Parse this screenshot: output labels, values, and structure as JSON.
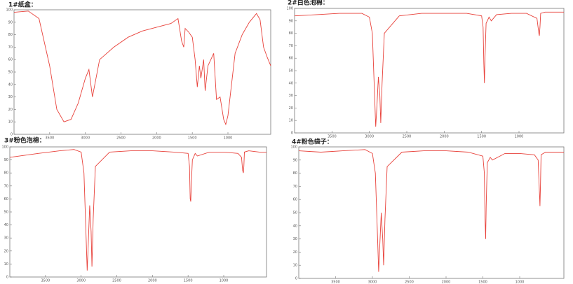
{
  "chart_data": [
    {
      "type": "line",
      "title": "1#纸盒：",
      "color": "#e8413a",
      "x": [
        4000,
        3800,
        3650,
        3500,
        3400,
        3300,
        3200,
        3100,
        3000,
        2950,
        2900,
        2850,
        2800,
        2600,
        2400,
        2200,
        2000,
        1800,
        1700,
        1650,
        1620,
        1600,
        1550,
        1500,
        1460,
        1430,
        1400,
        1380,
        1340,
        1320,
        1280,
        1200,
        1160,
        1110,
        1060,
        1030,
        1000,
        950,
        900,
        800,
        700,
        600,
        550,
        500,
        450,
        400
      ],
      "values": [
        98,
        99,
        93,
        55,
        20,
        10,
        12,
        25,
        45,
        52,
        30,
        45,
        60,
        70,
        78,
        83,
        86,
        89,
        93,
        75,
        70,
        85,
        82,
        78,
        60,
        38,
        55,
        45,
        60,
        35,
        55,
        65,
        28,
        30,
        12,
        8,
        15,
        40,
        65,
        80,
        90,
        97,
        92,
        70,
        62,
        55
      ],
      "xlim": [
        4000,
        400
      ],
      "ylim": [
        0,
        100
      ],
      "xticks": [
        3500,
        3000,
        2500,
        2000,
        1500,
        1000
      ],
      "yticks": [
        0,
        10,
        20,
        30,
        40,
        50,
        60,
        70,
        80,
        90,
        100
      ]
    },
    {
      "type": "line",
      "title": "2#白色泡棉：",
      "color": "#e8413a",
      "x": [
        4000,
        3700,
        3400,
        3100,
        3000,
        2960,
        2930,
        2915,
        2900,
        2880,
        2860,
        2848,
        2830,
        2800,
        2600,
        2300,
        2000,
        1700,
        1500,
        1480,
        1470,
        1462,
        1455,
        1440,
        1400,
        1370,
        1300,
        1100,
        900,
        760,
        735,
        728,
        720,
        710,
        650,
        500,
        400
      ],
      "values": [
        94,
        95,
        96,
        96,
        93,
        80,
        30,
        5,
        20,
        45,
        30,
        8,
        40,
        80,
        94,
        96,
        96,
        96,
        94,
        85,
        55,
        40,
        60,
        88,
        93,
        90,
        95,
        96,
        96,
        92,
        80,
        78,
        85,
        96,
        97,
        97,
        97
      ],
      "xlim": [
        4000,
        400
      ],
      "ylim": [
        0,
        100
      ],
      "xticks": [
        3500,
        3000,
        2500,
        2000,
        1500,
        1000
      ],
      "yticks": [
        0,
        10,
        20,
        30,
        40,
        50,
        60,
        70,
        80,
        90,
        100
      ]
    },
    {
      "type": "line",
      "title": "3#粉色泡棉：",
      "color": "#e8413a",
      "x": [
        4000,
        3600,
        3300,
        3100,
        3000,
        2960,
        2930,
        2915,
        2900,
        2880,
        2860,
        2848,
        2830,
        2800,
        2600,
        2300,
        2000,
        1700,
        1500,
        1480,
        1470,
        1462,
        1455,
        1440,
        1400,
        1370,
        1200,
        1000,
        800,
        750,
        735,
        725,
        718,
        710,
        650,
        500,
        400
      ],
      "values": [
        92,
        95,
        97,
        98,
        96,
        80,
        30,
        5,
        25,
        55,
        35,
        8,
        45,
        85,
        96,
        97,
        97,
        96,
        95,
        85,
        60,
        58,
        70,
        90,
        95,
        93,
        96,
        96,
        95,
        92,
        82,
        80,
        85,
        96,
        97,
        96,
        96
      ],
      "xlim": [
        4000,
        400
      ],
      "ylim": [
        0,
        100
      ],
      "xticks": [
        3500,
        3000,
        2500,
        2000,
        1500,
        1000
      ],
      "yticks": [
        0,
        10,
        20,
        30,
        40,
        50,
        60,
        70,
        80,
        90,
        100
      ]
    },
    {
      "type": "line",
      "title": "4#粉色袋子：",
      "color": "#e8413a",
      "x": [
        4000,
        3700,
        3400,
        3100,
        3000,
        2960,
        2930,
        2915,
        2900,
        2880,
        2860,
        2848,
        2830,
        2800,
        2600,
        2300,
        2000,
        1700,
        1500,
        1480,
        1470,
        1462,
        1455,
        1440,
        1400,
        1370,
        1200,
        1000,
        800,
        750,
        735,
        725,
        718,
        710,
        650,
        500,
        400
      ],
      "values": [
        97,
        96,
        97,
        98,
        95,
        80,
        30,
        5,
        25,
        50,
        30,
        10,
        45,
        85,
        96,
        97,
        97,
        96,
        93,
        80,
        45,
        30,
        55,
        88,
        92,
        90,
        95,
        95,
        94,
        90,
        70,
        55,
        70,
        94,
        96,
        96,
        96
      ],
      "xlim": [
        4000,
        400
      ],
      "ylim": [
        0,
        100
      ],
      "xticks": [
        3500,
        3000,
        2500,
        2000,
        1500,
        1000
      ],
      "yticks": [
        0,
        10,
        20,
        30,
        40,
        50,
        60,
        70,
        80,
        90,
        100
      ]
    }
  ]
}
